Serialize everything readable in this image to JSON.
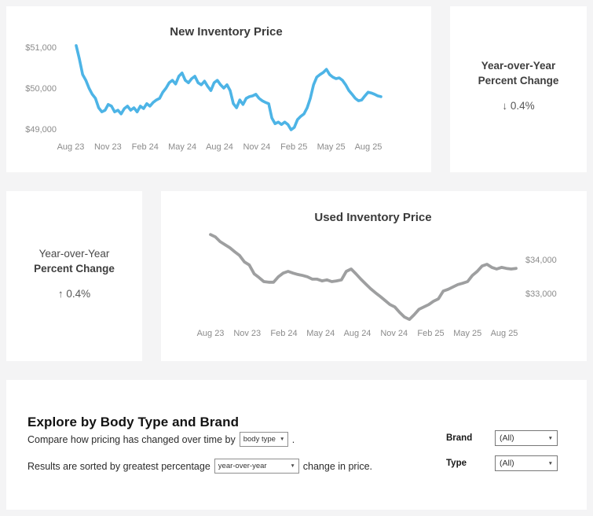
{
  "chart_data": [
    {
      "id": "new_inventory",
      "type": "line",
      "title": "New Inventory Price",
      "line_color": "#4db4e6",
      "y_axis_side": "left",
      "x_tick_labels": [
        "Aug 23",
        "Nov 23",
        "Feb 24",
        "May 24",
        "Aug 24",
        "Nov 24",
        "Feb 25",
        "May 25",
        "Aug 25"
      ],
      "y_ticks": [
        {
          "label": "$51,000",
          "value": 51000
        },
        {
          "label": "$50,000",
          "value": 50000
        },
        {
          "label": "$49,000",
          "value": 49000
        }
      ],
      "ylim": [
        48900,
        51100
      ],
      "values": [
        51040,
        50710,
        50330,
        50190,
        50000,
        49850,
        49750,
        49520,
        49420,
        49460,
        49600,
        49560,
        49420,
        49460,
        49370,
        49500,
        49560,
        49460,
        49520,
        49420,
        49560,
        49500,
        49620,
        49560,
        49650,
        49710,
        49750,
        49900,
        50000,
        50130,
        50190,
        50100,
        50290,
        50370,
        50190,
        50130,
        50230,
        50290,
        50130,
        50080,
        50170,
        50040,
        49940,
        50130,
        50190,
        50080,
        50000,
        50080,
        49940,
        49620,
        49520,
        49710,
        49600,
        49750,
        49790,
        49810,
        49850,
        49750,
        49690,
        49650,
        49620,
        49270,
        49130,
        49170,
        49110,
        49170,
        49110,
        48980,
        49040,
        49230,
        49310,
        49370,
        49520,
        49750,
        50080,
        50270,
        50330,
        50380,
        50460,
        50330,
        50270,
        50230,
        50250,
        50190,
        50080,
        49940,
        49850,
        49750,
        49690,
        49710,
        49810,
        49900,
        49880,
        49850,
        49810,
        49790
      ]
    },
    {
      "id": "used_inventory",
      "type": "line",
      "title": "Used Inventory Price",
      "line_color": "#9e9fa0",
      "y_axis_side": "right",
      "x_tick_labels": [
        "Aug 23",
        "Nov 23",
        "Feb 24",
        "May 24",
        "Aug 24",
        "Nov 24",
        "Feb 25",
        "May 25",
        "Aug 25"
      ],
      "y_ticks": [
        {
          "label": "$34,000",
          "value": 34000
        },
        {
          "label": "$33,000",
          "value": 33000
        }
      ],
      "ylim": [
        32100,
        34900
      ],
      "values": [
        34740,
        34670,
        34530,
        34440,
        34350,
        34230,
        34120,
        33930,
        33840,
        33580,
        33470,
        33350,
        33330,
        33330,
        33490,
        33600,
        33650,
        33600,
        33560,
        33530,
        33490,
        33420,
        33420,
        33370,
        33400,
        33350,
        33370,
        33400,
        33650,
        33720,
        33580,
        33420,
        33280,
        33140,
        33020,
        32910,
        32790,
        32670,
        32600,
        32440,
        32300,
        32230,
        32370,
        32530,
        32600,
        32670,
        32770,
        32840,
        33070,
        33120,
        33190,
        33260,
        33300,
        33350,
        33530,
        33650,
        33810,
        33860,
        33770,
        33720,
        33770,
        33740,
        33720,
        33740
      ]
    }
  ],
  "kpi_new": {
    "title_line1": "Year-over-Year",
    "title_line2": "Percent Change",
    "value": "↓ 0.4%"
  },
  "kpi_used": {
    "title_line1": "Year-over-Year",
    "title_line2": "Percent Change",
    "value": "↑ 0.4%"
  },
  "explore": {
    "heading": "Explore by Body Type and Brand",
    "sentence1_before": "Compare how pricing has changed over time by",
    "dropdown1_value": "body type",
    "sentence1_after": ".",
    "sentence2_before": "Results are sorted by greatest percentage",
    "dropdown2_value": "year-over-year",
    "sentence2_after": "change in price.",
    "filters": [
      {
        "label": "Brand",
        "value": "(All)"
      },
      {
        "label": "Type",
        "value": "(All)"
      }
    ]
  },
  "icons": {
    "dropdown_caret": "▼"
  }
}
